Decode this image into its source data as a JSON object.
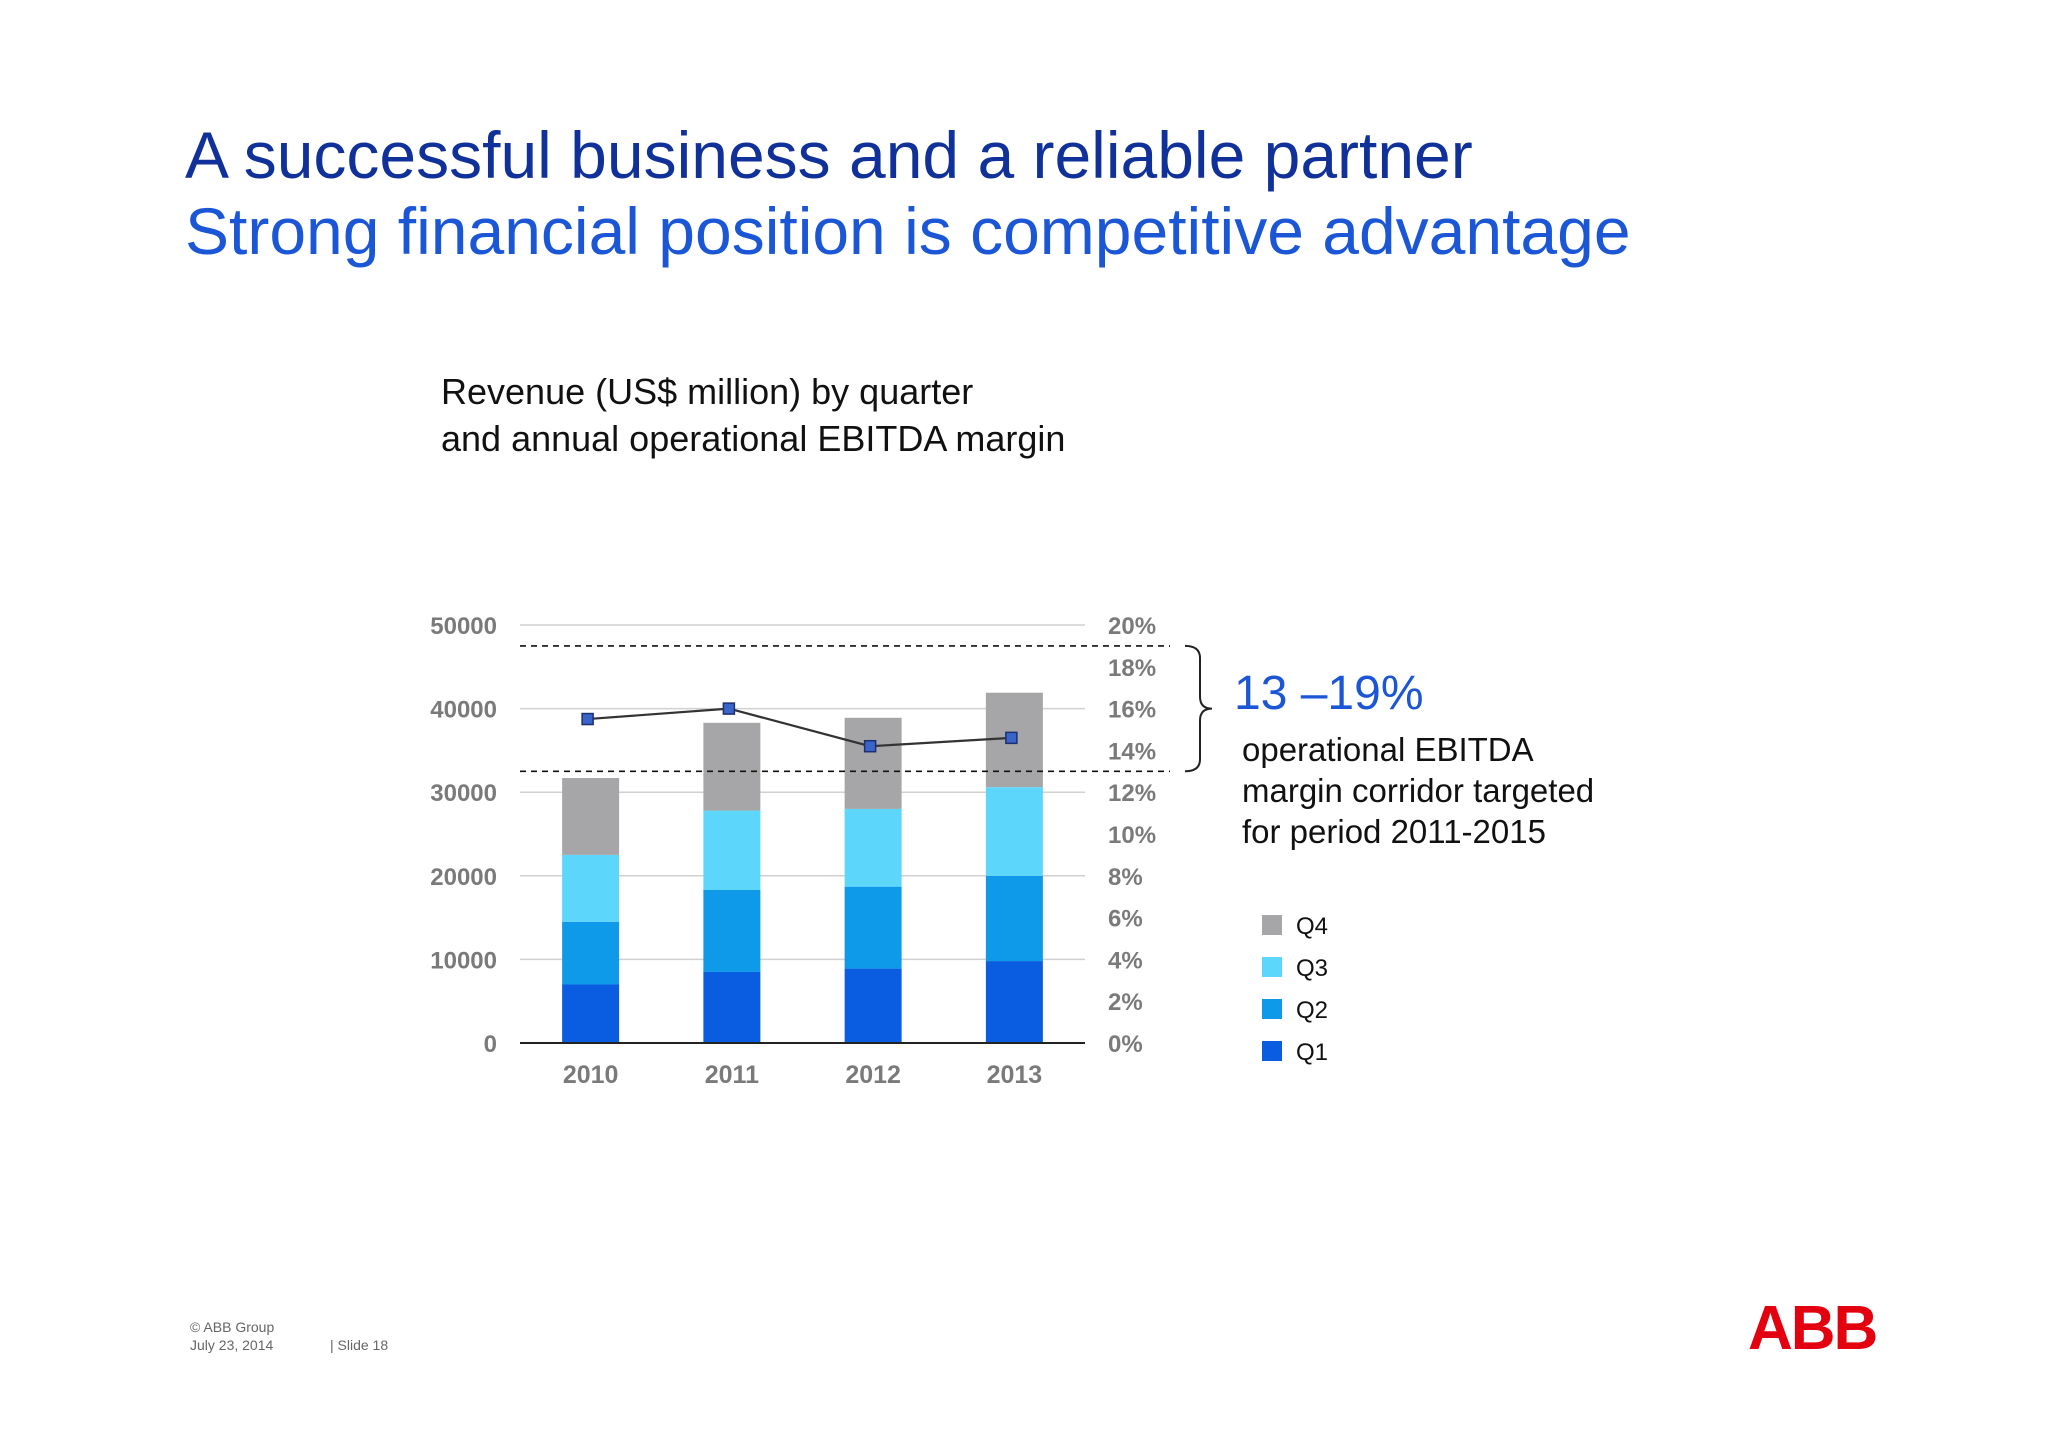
{
  "slide": {
    "title": "A successful business and a reliable partner",
    "subtitle": "Strong financial position is competitive advantage",
    "footer": {
      "copyright": "© ABB Group",
      "date": "July 23, 2014",
      "slide": "| Slide 18"
    },
    "logo_text": "ABB",
    "annotation": {
      "range": "13 –19%",
      "lines": [
        "operational EBITDA",
        "margin corridor targeted",
        "for period 2011-2015"
      ]
    }
  },
  "colors": {
    "q1": "#0a5ce0",
    "q2": "#0e9ae8",
    "q3": "#5dd6fb",
    "q4": "#a6a6a8",
    "title": "#10309a",
    "accent": "#1a56d6",
    "logo": "#e3000f"
  },
  "chart_data": {
    "type": "bar",
    "stacked": true,
    "title_lines": [
      "Revenue (US$ million) by quarter",
      "and annual operational EBITDA margin"
    ],
    "categories": [
      "2010",
      "2011",
      "2012",
      "2013"
    ],
    "series": [
      {
        "name": "Q1",
        "values": [
          7000,
          8500,
          8900,
          9800
        ]
      },
      {
        "name": "Q2",
        "values": [
          7500,
          9800,
          9800,
          10200
        ]
      },
      {
        "name": "Q3",
        "values": [
          8000,
          9500,
          9300,
          10600
        ]
      },
      {
        "name": "Q4",
        "values": [
          9200,
          10500,
          10900,
          11300
        ]
      }
    ],
    "line_series": {
      "values": [
        15.5,
        16.0,
        14.2,
        14.6
      ],
      "axis": "right"
    },
    "ylim": [
      0,
      50000
    ],
    "yticks": [
      "0",
      "10000",
      "20000",
      "30000",
      "40000",
      "50000"
    ],
    "y2lim": [
      0,
      20
    ],
    "y2ticks": [
      "0%",
      "2%",
      "4%",
      "6%",
      "8%",
      "10%",
      "12%",
      "14%",
      "16%",
      "18%",
      "20%"
    ],
    "corridor": [
      13,
      19
    ],
    "legend": [
      "Q4",
      "Q3",
      "Q2",
      "Q1"
    ],
    "legend_position": "right",
    "grid": true
  }
}
